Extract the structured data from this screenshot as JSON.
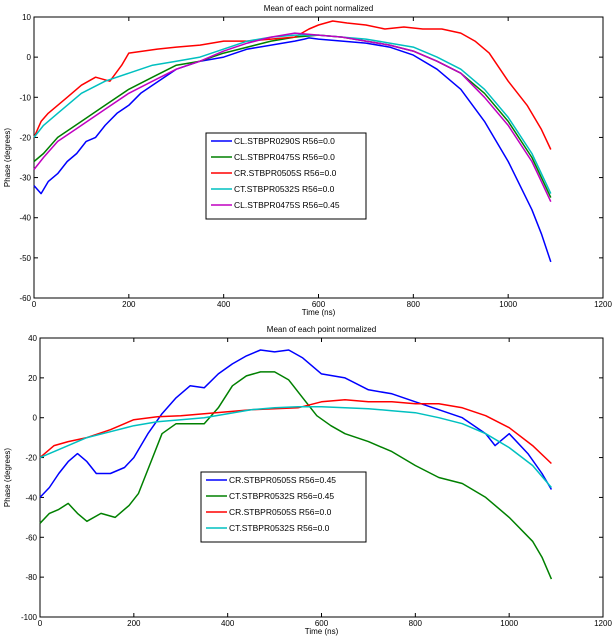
{
  "chart_data": [
    {
      "type": "line",
      "title": "Mean of each point normalized",
      "xlabel": "Time (ns)",
      "ylabel": "Phase (degrees)",
      "xlim": [
        0,
        1200
      ],
      "ylim": [
        -60,
        10
      ],
      "xticks": [
        0,
        200,
        400,
        600,
        800,
        1000,
        1200
      ],
      "yticks": [
        -60,
        -50,
        -40,
        -30,
        -20,
        -10,
        0,
        10
      ],
      "legend_position": "center-left",
      "series": [
        {
          "name": "CL.STBPR0290S R56=0.0",
          "color": "#0000ff",
          "x": [
            0,
            15,
            30,
            50,
            70,
            90,
            110,
            130,
            150,
            175,
            200,
            225,
            250,
            275,
            300,
            325,
            350,
            375,
            400,
            425,
            450,
            475,
            500,
            525,
            550,
            570,
            580,
            600,
            650,
            700,
            750,
            800,
            850,
            900,
            950,
            1000,
            1050,
            1070,
            1090
          ],
          "y": [
            -32,
            -34,
            -31,
            -29,
            -26,
            -24,
            -21,
            -20,
            -17,
            -14,
            -12,
            -9,
            -7,
            -5,
            -3,
            -2,
            -1,
            -0.5,
            0,
            1,
            2,
            2.5,
            3,
            3.5,
            4,
            4.5,
            4.8,
            4.5,
            4,
            3.5,
            2.5,
            0.5,
            -3,
            -8,
            -16,
            -26,
            -38,
            -44,
            -51
          ]
        },
        {
          "name": "CL.STBPR0475S R56=0.0",
          "color": "#008000",
          "x": [
            0,
            20,
            50,
            100,
            150,
            200,
            250,
            300,
            350,
            400,
            450,
            500,
            550,
            600,
            650,
            700,
            750,
            800,
            850,
            900,
            950,
            1000,
            1050,
            1070,
            1090
          ],
          "y": [
            -26,
            -24,
            -20,
            -16,
            -12,
            -8,
            -5,
            -2,
            -1,
            1,
            2.5,
            4,
            5,
            5.5,
            5,
            4,
            3,
            1.5,
            -1,
            -4,
            -9,
            -16,
            -25,
            -30,
            -35
          ]
        },
        {
          "name": "CR.STBPR0505S R56=0.0",
          "color": "#ff0000",
          "x": [
            0,
            15,
            30,
            50,
            70,
            100,
            130,
            160,
            185,
            200,
            230,
            260,
            300,
            350,
            400,
            450,
            500,
            550,
            580,
            600,
            630,
            660,
            700,
            740,
            780,
            820,
            860,
            900,
            930,
            960,
            1000,
            1040,
            1070,
            1090
          ],
          "y": [
            -20,
            -16,
            -14,
            -12,
            -10,
            -7,
            -5,
            -6,
            -2,
            1,
            1.5,
            2,
            2.5,
            3,
            4,
            4,
            4.5,
            5,
            7,
            8,
            9,
            8.5,
            8,
            7,
            7.5,
            7,
            7,
            6,
            4,
            1,
            -6,
            -12,
            -18,
            -23
          ]
        },
        {
          "name": "CT.STBPR0532S R56=0.0",
          "color": "#00c0c0",
          "x": [
            0,
            20,
            50,
            100,
            150,
            200,
            250,
            300,
            350,
            400,
            450,
            500,
            550,
            600,
            650,
            700,
            750,
            800,
            850,
            900,
            950,
            1000,
            1050,
            1070,
            1090
          ],
          "y": [
            -20,
            -17,
            -14,
            -9,
            -6,
            -4,
            -2,
            -1,
            0,
            2,
            4,
            5,
            5.5,
            5.5,
            5,
            4.5,
            3.5,
            2.5,
            0,
            -3,
            -8,
            -15,
            -24,
            -29,
            -34
          ]
        },
        {
          "name": "CL.STBPR0475S R56=0.45",
          "color": "#c000c0",
          "x": [
            0,
            20,
            50,
            100,
            150,
            200,
            250,
            300,
            350,
            400,
            450,
            500,
            550,
            600,
            650,
            700,
            750,
            800,
            850,
            900,
            950,
            1000,
            1050,
            1070,
            1090
          ],
          "y": [
            -28,
            -25,
            -21,
            -17,
            -13,
            -9,
            -6,
            -3,
            -1,
            1.5,
            3.5,
            5,
            6,
            5.5,
            5,
            4,
            3,
            1.5,
            -1,
            -4,
            -10,
            -17,
            -26,
            -31,
            -36
          ]
        }
      ]
    },
    {
      "type": "line",
      "title": "Mean of each point normalized",
      "xlabel": "Time (ns)",
      "ylabel": "Phase (degrees)",
      "xlim": [
        0,
        1200
      ],
      "ylim": [
        -100,
        40
      ],
      "xticks": [
        0,
        200,
        400,
        600,
        800,
        1000,
        1200
      ],
      "yticks": [
        -100,
        -80,
        -60,
        -40,
        -20,
        0,
        20,
        40
      ],
      "legend_position": "lower-center",
      "series": [
        {
          "name": "CR.STBPR0505S R56=0.45",
          "color": "#0000ff",
          "x": [
            0,
            20,
            40,
            60,
            80,
            100,
            120,
            150,
            180,
            200,
            230,
            260,
            290,
            320,
            350,
            380,
            410,
            440,
            470,
            500,
            530,
            560,
            600,
            650,
            700,
            750,
            800,
            850,
            900,
            950,
            970,
            1000,
            1040,
            1070,
            1090
          ],
          "y": [
            -40,
            -35,
            -28,
            -22,
            -18,
            -22,
            -28,
            -28,
            -25,
            -20,
            -8,
            2,
            10,
            16,
            15,
            22,
            27,
            31,
            34,
            33,
            34,
            30,
            22,
            20,
            14,
            12,
            8,
            4,
            0,
            -8,
            -14,
            -8,
            -18,
            -28,
            -36
          ]
        },
        {
          "name": "CT.STBPR0532S R56=0.45",
          "color": "#008000",
          "x": [
            0,
            20,
            40,
            60,
            80,
            100,
            130,
            160,
            190,
            210,
            240,
            260,
            290,
            320,
            350,
            380,
            410,
            440,
            470,
            500,
            530,
            560,
            590,
            620,
            650,
            700,
            750,
            800,
            850,
            900,
            950,
            1000,
            1050,
            1070,
            1090
          ],
          "y": [
            -53,
            -48,
            -46,
            -43,
            -48,
            -52,
            -48,
            -50,
            -44,
            -38,
            -20,
            -8,
            -3,
            -3,
            -3,
            5,
            16,
            21,
            23,
            23,
            19,
            10,
            1,
            -4,
            -8,
            -12,
            -17,
            -24,
            -30,
            -33,
            -40,
            -50,
            -62,
            -70,
            -81
          ]
        },
        {
          "name": "CR.STBPR0505S R56=0.0",
          "color": "#ff0000",
          "x": [
            0,
            30,
            60,
            100,
            150,
            200,
            250,
            300,
            350,
            400,
            450,
            500,
            550,
            600,
            650,
            700,
            750,
            800,
            850,
            900,
            950,
            1000,
            1050,
            1090
          ],
          "y": [
            -20,
            -14,
            -12,
            -10,
            -6,
            -1,
            0.5,
            1,
            2,
            3,
            4,
            4.5,
            5,
            8,
            9,
            8,
            8,
            7,
            7,
            5,
            1,
            -5,
            -14,
            -23
          ]
        },
        {
          "name": "CT.STBPR0532S R56=0.0",
          "color": "#00c0c0",
          "x": [
            0,
            50,
            100,
            150,
            200,
            250,
            300,
            350,
            400,
            450,
            500,
            550,
            600,
            650,
            700,
            750,
            800,
            850,
            900,
            950,
            1000,
            1050,
            1090
          ],
          "y": [
            -20,
            -15,
            -10,
            -7,
            -4,
            -2,
            -1,
            0,
            2,
            4,
            5,
            5.5,
            5.5,
            5,
            4.5,
            3.5,
            2.5,
            0,
            -3,
            -8,
            -15,
            -24,
            -35
          ]
        }
      ]
    }
  ]
}
